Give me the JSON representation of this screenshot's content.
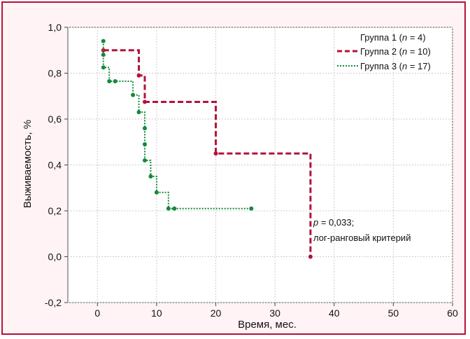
{
  "chart_data": {
    "type": "line",
    "subtype": "kaplan-meier step",
    "xlabel": "Время, мес.",
    "ylabel": "Выживаемость, %",
    "xlim": [
      -5,
      60
    ],
    "ylim": [
      -0.2,
      1.0
    ],
    "x_ticks": [
      0,
      10,
      20,
      30,
      40,
      50,
      60
    ],
    "x_tick_labels": [
      "0",
      "10",
      "20",
      "30",
      "40",
      "50",
      "60"
    ],
    "y_ticks": [
      -0.2,
      0.0,
      0.2,
      0.4,
      0.6,
      0.8,
      1.0
    ],
    "y_tick_labels": [
      "-0,2",
      "0,0",
      "0,2",
      "0,4",
      "0,6",
      "0,8",
      "1,0"
    ],
    "grid": true,
    "legend_position": "top-right",
    "series": [
      {
        "name_parts": [
          "Группа 1 (",
          "n",
          " = 4)"
        ],
        "color": "#ffffff",
        "style": "none",
        "points": []
      },
      {
        "name_parts": [
          "Группа 2 (",
          "n",
          " = 10)"
        ],
        "color": "#b5123b",
        "style": "dashed",
        "points": [
          [
            1,
            0.9
          ],
          [
            7,
            0.79
          ],
          [
            8,
            0.675
          ],
          [
            20,
            0.45
          ],
          [
            36,
            0.0
          ]
        ],
        "start": [
          1,
          0.9
        ],
        "end_x": 36
      },
      {
        "name_parts": [
          "Группа 3 (",
          "n",
          " = 17)"
        ],
        "color": "#138a3c",
        "style": "dotted",
        "points": [
          [
            1,
            0.94
          ],
          [
            1,
            0.88
          ],
          [
            1,
            0.825
          ],
          [
            2,
            0.765
          ],
          [
            3,
            0.765
          ],
          [
            6,
            0.705
          ],
          [
            7,
            0.63
          ],
          [
            8,
            0.56
          ],
          [
            8,
            0.49
          ],
          [
            8,
            0.42
          ],
          [
            9,
            0.35
          ],
          [
            10,
            0.28
          ],
          [
            12,
            0.21
          ],
          [
            13,
            0.21
          ],
          [
            26,
            0.21
          ]
        ],
        "start": [
          1,
          0.94
        ],
        "end_x": 26
      }
    ],
    "annotation": {
      "p_symbol": "p",
      "p_value": " = 0,033;",
      "line2": "лог-ранговый критерий"
    }
  }
}
